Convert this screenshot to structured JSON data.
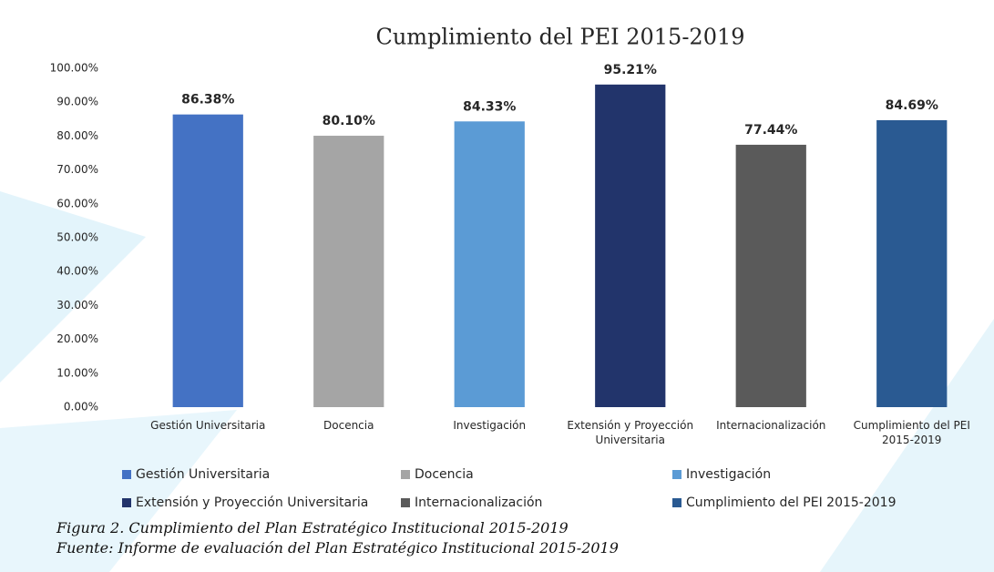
{
  "chart_data": {
    "type": "bar",
    "title": "Cumplimiento del PEI 2015-2019",
    "categories": [
      "Gestión Universitaria",
      "Docencia",
      "Investigación",
      "Extensión y Proyección Universitaria",
      "Internacionalización",
      "Cumplimiento del PEI 2015-2019"
    ],
    "values": [
      86.38,
      80.1,
      84.33,
      95.21,
      77.44,
      84.69
    ],
    "value_labels": [
      "86.38%",
      "80.10%",
      "84.33%",
      "95.21%",
      "77.44%",
      "84.69%"
    ],
    "colors": [
      "#4472c4",
      "#a5a5a5",
      "#5b9bd5",
      "#22346b",
      "#5a5a5a",
      "#2a5a92"
    ],
    "ylim": [
      0,
      100
    ],
    "yticks": [
      {
        "value": 0,
        "label": "0.00%"
      },
      {
        "value": 10,
        "label": "10.00%"
      },
      {
        "value": 20,
        "label": "20.00%"
      },
      {
        "value": 30,
        "label": "30.00%"
      },
      {
        "value": 40,
        "label": "40.00%"
      },
      {
        "value": 50,
        "label": "50.00%"
      },
      {
        "value": 60,
        "label": "60.00%"
      },
      {
        "value": 70,
        "label": "70.00%"
      },
      {
        "value": 80,
        "label": "80.00%"
      },
      {
        "value": 90,
        "label": "90.00%"
      },
      {
        "value": 100,
        "label": "100.00%"
      }
    ],
    "grid": false,
    "legend": "bottom"
  },
  "caption": {
    "figure": "Figura 2. Cumplimiento del Plan Estratégico Institucional 2015-2019",
    "source": "Fuente: Informe de evaluación del Plan Estratégico Institucional 2015-2019"
  }
}
